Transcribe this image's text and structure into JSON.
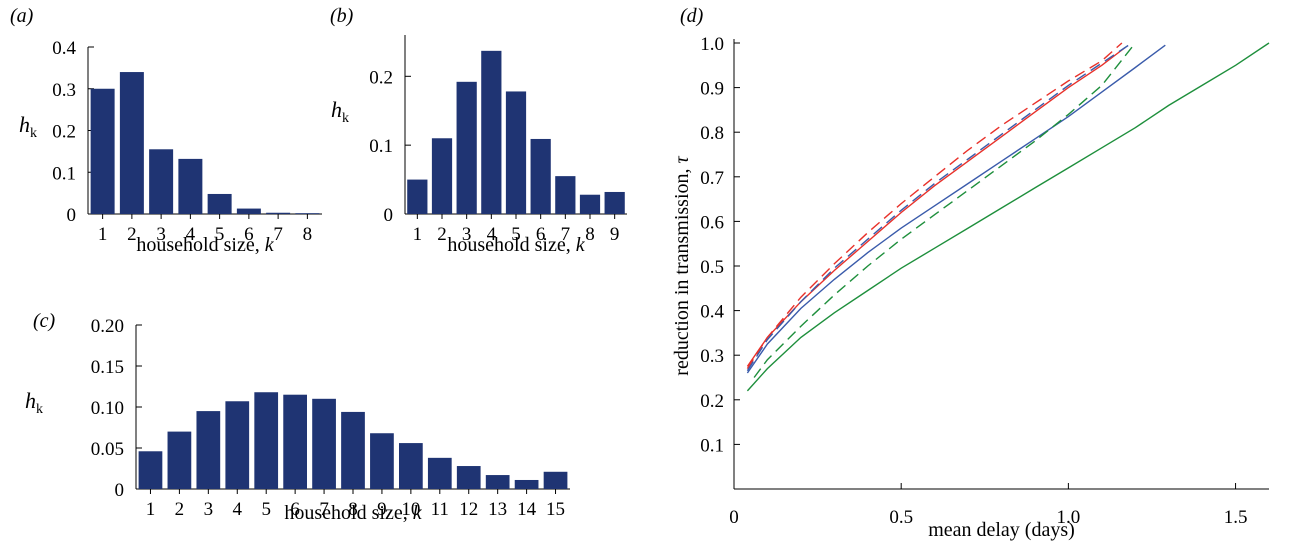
{
  "colors": {
    "bar": "#1f3473",
    "red": "#e8312a",
    "blue": "#3a5bab",
    "green": "#1e8f3c"
  },
  "panels": {
    "a": {
      "label": "(a)"
    },
    "b": {
      "label": "(b)"
    },
    "c": {
      "label": "(c)"
    },
    "d": {
      "label": "(d)"
    }
  },
  "chart_data": [
    {
      "panel": "a",
      "type": "bar",
      "categories": [
        "1",
        "2",
        "3",
        "4",
        "5",
        "6",
        "7",
        "8"
      ],
      "values": [
        0.3,
        0.34,
        0.155,
        0.132,
        0.048,
        0.013,
        0.003,
        0.002
      ],
      "xlabel_main": "household size, ",
      "xlabel_var": "k",
      "ylabel_main": "h",
      "ylabel_sub": "k",
      "ylim": [
        0,
        0.4
      ],
      "yticks": [
        0,
        0.1,
        0.2,
        0.3,
        0.4
      ],
      "ytick_labels": [
        "0",
        "0.1",
        "0.2",
        "0.3",
        "0.4"
      ]
    },
    {
      "panel": "b",
      "type": "bar",
      "categories": [
        "1",
        "2",
        "3",
        "4",
        "5",
        "6",
        "7",
        "8",
        "9"
      ],
      "values": [
        0.05,
        0.11,
        0.192,
        0.237,
        0.178,
        0.109,
        0.055,
        0.028,
        0.032
      ],
      "xlabel_main": "household size, ",
      "xlabel_var": "k",
      "ylabel_main": "h",
      "ylabel_sub": "k",
      "ylim": [
        0,
        0.26
      ],
      "yticks": [
        0,
        0.1,
        0.2
      ],
      "ytick_labels": [
        "0",
        "0.1",
        "0.2"
      ]
    },
    {
      "panel": "c",
      "type": "bar",
      "categories": [
        "1",
        "2",
        "3",
        "4",
        "5",
        "6",
        "7",
        "8",
        "9",
        "10",
        "11",
        "12",
        "13",
        "14",
        "15"
      ],
      "values": [
        0.046,
        0.07,
        0.095,
        0.107,
        0.118,
        0.115,
        0.11,
        0.094,
        0.068,
        0.056,
        0.038,
        0.028,
        0.017,
        0.011,
        0.021
      ],
      "xlabel_main": "household size, ",
      "xlabel_var": "k",
      "ylabel_main": "h",
      "ylabel_sub": "k",
      "ylim": [
        0,
        0.2
      ],
      "yticks": [
        0,
        0.05,
        0.1,
        0.15,
        0.2
      ],
      "ytick_labels": [
        "0",
        "0.05",
        "0.10",
        "0.15",
        "0.20"
      ]
    },
    {
      "panel": "d",
      "type": "line",
      "xlabel": "mean delay (days)",
      "ylabel_main": "reduction in transmission, ",
      "ylabel_var": "τ",
      "xlim": [
        0,
        1.6
      ],
      "ylim": [
        0,
        1.0
      ],
      "xticks": [
        0,
        0.5,
        1.0,
        1.5
      ],
      "xtick_labels": [
        "0",
        "0.5",
        "1.0",
        "1.5"
      ],
      "yticks": [
        0.1,
        0.2,
        0.3,
        0.4,
        0.5,
        0.6,
        0.7,
        0.8,
        0.9,
        1.0
      ],
      "ytick_labels": [
        "0.1",
        "0.2",
        "0.3",
        "0.4",
        "0.5",
        "0.6",
        "0.7",
        "0.8",
        "0.9",
        "1.0"
      ],
      "series": [
        {
          "color": "#e8312a",
          "dash": false,
          "x": [
            0.04,
            0.1,
            0.2,
            0.3,
            0.4,
            0.5,
            0.6,
            0.7,
            0.8,
            0.9,
            1.0,
            1.1,
            1.17
          ],
          "y": [
            0.275,
            0.34,
            0.42,
            0.49,
            0.555,
            0.62,
            0.68,
            0.735,
            0.79,
            0.845,
            0.9,
            0.95,
            0.99
          ]
        },
        {
          "color": "#e8312a",
          "dash": true,
          "x": [
            0.04,
            0.1,
            0.2,
            0.3,
            0.4,
            0.5,
            0.6,
            0.7,
            0.8,
            0.9,
            1.0,
            1.1,
            1.16
          ],
          "y": [
            0.27,
            0.34,
            0.43,
            0.505,
            0.575,
            0.64,
            0.7,
            0.76,
            0.815,
            0.865,
            0.915,
            0.96,
            1.0
          ]
        },
        {
          "color": "#3a5bab",
          "dash": false,
          "x": [
            0.04,
            0.1,
            0.2,
            0.3,
            0.4,
            0.5,
            0.6,
            0.7,
            0.8,
            0.9,
            1.0,
            1.1,
            1.2,
            1.29
          ],
          "y": [
            0.26,
            0.325,
            0.405,
            0.47,
            0.53,
            0.585,
            0.635,
            0.685,
            0.735,
            0.785,
            0.835,
            0.89,
            0.945,
            0.995
          ]
        },
        {
          "color": "#3a5bab",
          "dash": true,
          "x": [
            0.04,
            0.1,
            0.2,
            0.3,
            0.4,
            0.5,
            0.6,
            0.7,
            0.8,
            0.9,
            1.0,
            1.1,
            1.18
          ],
          "y": [
            0.265,
            0.335,
            0.42,
            0.495,
            0.56,
            0.625,
            0.685,
            0.74,
            0.795,
            0.85,
            0.905,
            0.955,
            0.995
          ]
        },
        {
          "color": "#1e8f3c",
          "dash": false,
          "x": [
            0.04,
            0.1,
            0.2,
            0.3,
            0.4,
            0.5,
            0.6,
            0.7,
            0.8,
            0.9,
            1.0,
            1.1,
            1.2,
            1.3,
            1.4,
            1.5,
            1.6
          ],
          "y": [
            0.22,
            0.27,
            0.34,
            0.395,
            0.445,
            0.495,
            0.54,
            0.585,
            0.63,
            0.675,
            0.72,
            0.765,
            0.81,
            0.86,
            0.905,
            0.95,
            1.0
          ]
        },
        {
          "color": "#1e8f3c",
          "dash": true,
          "x": [
            0.06,
            0.1,
            0.2,
            0.3,
            0.4,
            0.5,
            0.6,
            0.7,
            0.8,
            0.9,
            1.0,
            1.1,
            1.2
          ],
          "y": [
            0.25,
            0.29,
            0.365,
            0.435,
            0.5,
            0.56,
            0.615,
            0.67,
            0.725,
            0.78,
            0.84,
            0.905,
            1.0
          ]
        }
      ]
    }
  ]
}
